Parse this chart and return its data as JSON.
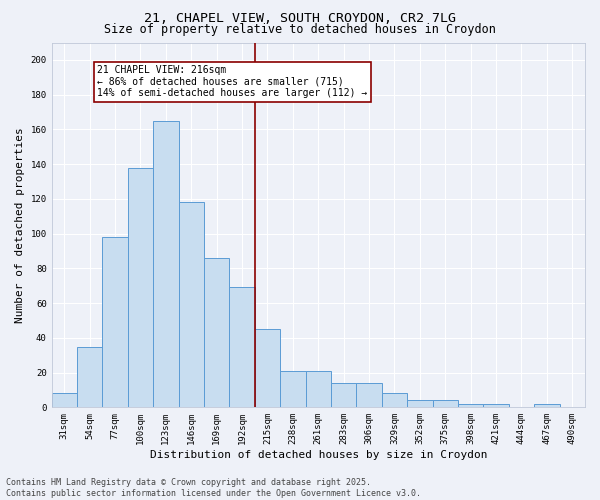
{
  "title": "21, CHAPEL VIEW, SOUTH CROYDON, CR2 7LG",
  "subtitle": "Size of property relative to detached houses in Croydon",
  "xlabel": "Distribution of detached houses by size in Croydon",
  "ylabel": "Number of detached properties",
  "footer_line1": "Contains HM Land Registry data © Crown copyright and database right 2025.",
  "footer_line2": "Contains public sector information licensed under the Open Government Licence v3.0.",
  "categories": [
    "31sqm",
    "54sqm",
    "77sqm",
    "100sqm",
    "123sqm",
    "146sqm",
    "169sqm",
    "192sqm",
    "215sqm",
    "238sqm",
    "261sqm",
    "283sqm",
    "306sqm",
    "329sqm",
    "352sqm",
    "375sqm",
    "398sqm",
    "421sqm",
    "444sqm",
    "467sqm",
    "490sqm"
  ],
  "values": [
    8,
    35,
    98,
    138,
    165,
    118,
    86,
    69,
    45,
    21,
    21,
    14,
    14,
    8,
    4,
    4,
    2,
    2,
    0,
    2,
    0
  ],
  "bar_color": "#c8ddf0",
  "bar_edge_color": "#5b9bd5",
  "vline_color": "#8b0000",
  "vline_index": 8,
  "annotation_text": "21 CHAPEL VIEW: 216sqm\n← 86% of detached houses are smaller (715)\n14% of semi-detached houses are larger (112) →",
  "annotation_box_edge_color": "#8b0000",
  "annotation_box_fill": "white",
  "ylim": [
    0,
    210
  ],
  "yticks": [
    0,
    20,
    40,
    60,
    80,
    100,
    120,
    140,
    160,
    180,
    200
  ],
  "background_color": "#eef1f8",
  "grid_color": "white",
  "title_fontsize": 9.5,
  "subtitle_fontsize": 8.5,
  "axis_label_fontsize": 8,
  "tick_fontsize": 6.5,
  "footer_fontsize": 6,
  "annotation_fontsize": 7
}
